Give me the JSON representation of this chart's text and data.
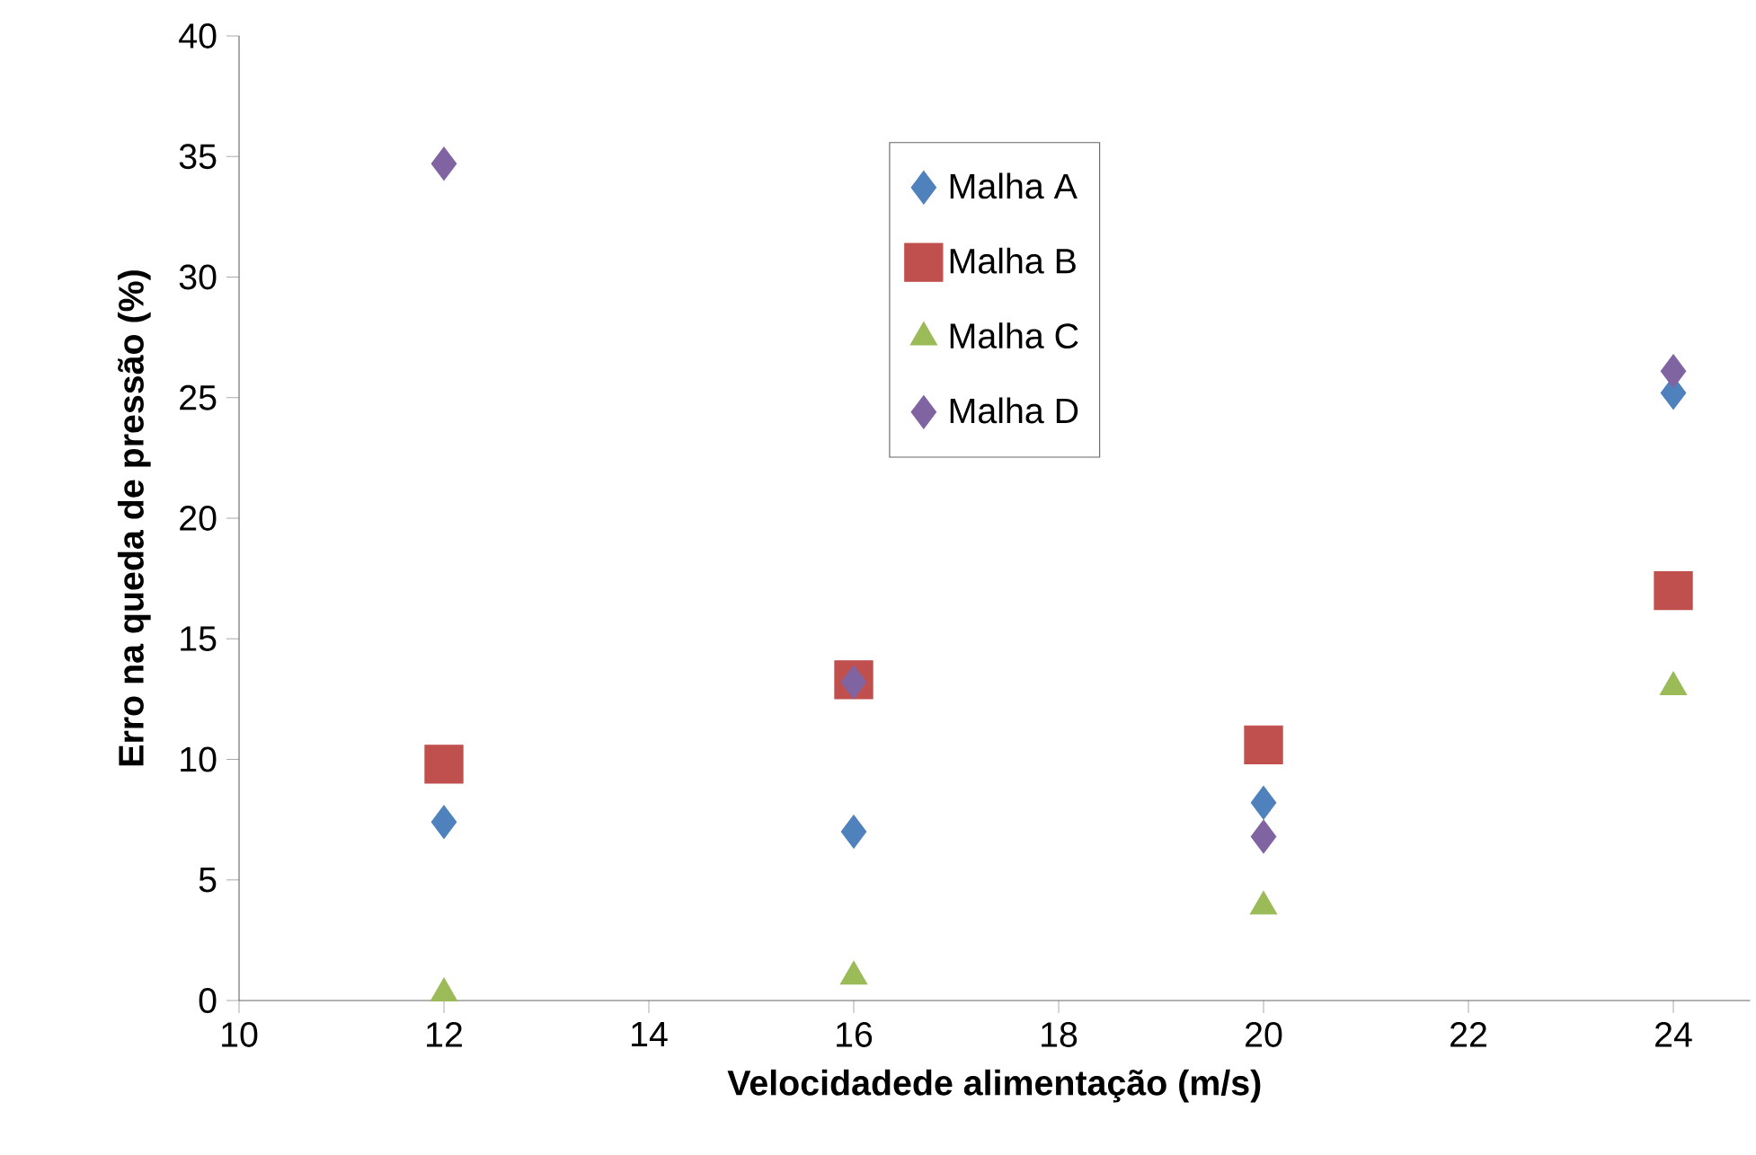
{
  "chart_data": {
    "type": "scatter",
    "xlabel": "Velocidadede alimentação (m/s)",
    "ylabel": "Erro na queda de pressão (%)",
    "x": [
      12,
      16,
      20,
      24
    ],
    "series": [
      {
        "name": "Malha A",
        "color": "#4f81bd",
        "marker": "diamond",
        "values": [
          7.4,
          7.0,
          8.2,
          25.2
        ]
      },
      {
        "name": "Malha B",
        "color": "#c0504d",
        "marker": "square",
        "values": [
          9.8,
          13.3,
          10.6,
          17.0
        ]
      },
      {
        "name": "Malha C",
        "color": "#9bbb59",
        "marker": "triangle",
        "values": [
          0.3,
          1.0,
          3.9,
          13.0
        ]
      },
      {
        "name": "Malha D",
        "color": "#8064a2",
        "marker": "diamond",
        "values": [
          34.7,
          13.2,
          6.8,
          26.1
        ]
      }
    ],
    "xlim": [
      10,
      24.75
    ],
    "xticks": [
      10,
      12,
      14,
      16,
      18,
      20,
      22,
      24
    ],
    "ylim": [
      0,
      40
    ],
    "yticks": [
      0,
      5,
      10,
      15,
      20,
      25,
      30,
      35,
      40
    ],
    "grid": false,
    "legend": "top"
  }
}
